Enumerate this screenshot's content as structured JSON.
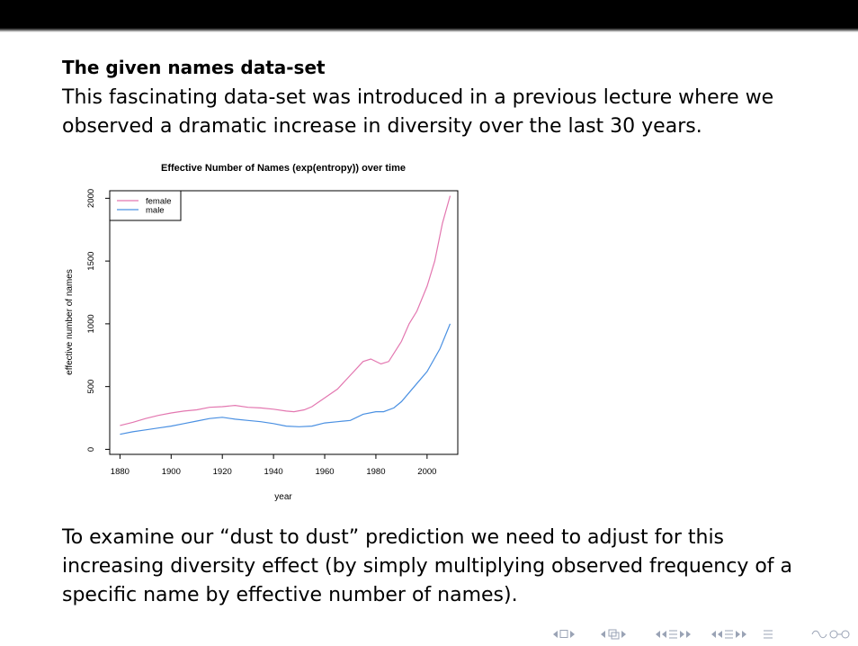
{
  "slide": {
    "heading": "The given names data-set",
    "paragraph1": "This fascinating data-set was introduced in a previous lecture where we observed a dramatic increase in diversity over the last 30 years.",
    "paragraph2": "To examine our “dust to dust” prediction we need to adjust for this increasing diversity effect (by simply multiplying observed frequency of a specific name by effective number of names)."
  },
  "chart_data": {
    "type": "line",
    "title": "Effective Number of Names (exp(entropy)) over time",
    "xlabel": "year",
    "ylabel": "effective number of names",
    "xlim": [
      1876,
      2012
    ],
    "ylim": [
      -40,
      2060
    ],
    "xticks": [
      1880,
      1900,
      1920,
      1940,
      1960,
      1980,
      2000
    ],
    "yticks": [
      0,
      500,
      1000,
      1500,
      2000
    ],
    "legend_position": "top-left",
    "grid": false,
    "series": [
      {
        "name": "female",
        "color": "#e377b0",
        "x": [
          1880,
          1885,
          1890,
          1895,
          1900,
          1905,
          1910,
          1915,
          1920,
          1925,
          1930,
          1935,
          1940,
          1945,
          1948,
          1952,
          1955,
          1960,
          1965,
          1970,
          1975,
          1978,
          1982,
          1985,
          1990,
          1993,
          1996,
          2000,
          2003,
          2006,
          2009
        ],
        "y": [
          190,
          215,
          245,
          270,
          290,
          305,
          315,
          335,
          340,
          350,
          335,
          330,
          320,
          305,
          300,
          315,
          340,
          410,
          480,
          590,
          700,
          720,
          680,
          700,
          860,
          1000,
          1100,
          1300,
          1500,
          1800,
          2020
        ]
      },
      {
        "name": "male",
        "color": "#4a90e2",
        "x": [
          1880,
          1885,
          1890,
          1895,
          1900,
          1905,
          1910,
          1915,
          1920,
          1925,
          1930,
          1935,
          1940,
          1945,
          1950,
          1955,
          1960,
          1965,
          1970,
          1975,
          1980,
          1983,
          1987,
          1990,
          1995,
          2000,
          2005,
          2009
        ],
        "y": [
          120,
          140,
          155,
          170,
          185,
          205,
          225,
          245,
          255,
          240,
          230,
          220,
          205,
          185,
          180,
          185,
          210,
          220,
          230,
          280,
          300,
          300,
          330,
          380,
          500,
          620,
          800,
          1000
        ]
      }
    ]
  },
  "navigation": {
    "icons": [
      "nav-first-icon",
      "nav-prev-icon",
      "nav-section-icon",
      "nav-subsection-icon",
      "nav-frame-icon",
      "nav-search-icon"
    ]
  }
}
